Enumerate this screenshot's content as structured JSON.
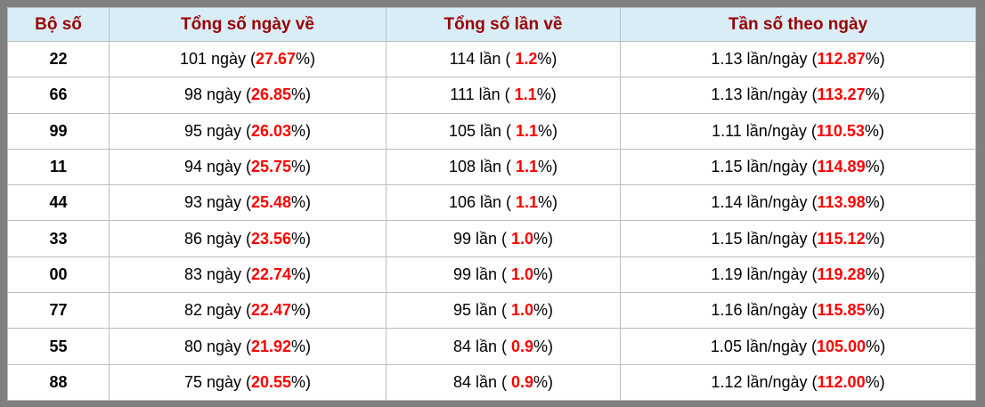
{
  "colors": {
    "frame_border": "#7f7f7f",
    "header_background": "#d9edf7",
    "header_text": "#990000",
    "highlight_value": "#ff0000",
    "grid_line": "#bdbdbd",
    "body_text": "#000000"
  },
  "table": {
    "columns": [
      "Bộ số",
      "Tổng số ngày về",
      "Tổng số lần về",
      "Tần số theo ngày"
    ],
    "rows": [
      {
        "boso": "22",
        "ngay_prefix": "101 ngày (",
        "ngay_value": "27.67",
        "ngay_suffix": "%)",
        "lan_prefix": "114 lần ( ",
        "lan_value": "1.2",
        "lan_suffix": "%)",
        "tanso_prefix": "1.13 lần/ngày (",
        "tanso_value": "112.87",
        "tanso_suffix": "%)"
      },
      {
        "boso": "66",
        "ngay_prefix": "98 ngày (",
        "ngay_value": "26.85",
        "ngay_suffix": "%)",
        "lan_prefix": "111 lần ( ",
        "lan_value": "1.1",
        "lan_suffix": "%)",
        "tanso_prefix": "1.13 lần/ngày (",
        "tanso_value": "113.27",
        "tanso_suffix": "%)"
      },
      {
        "boso": "99",
        "ngay_prefix": "95 ngày (",
        "ngay_value": "26.03",
        "ngay_suffix": "%)",
        "lan_prefix": "105 lần ( ",
        "lan_value": "1.1",
        "lan_suffix": "%)",
        "tanso_prefix": "1.11 lần/ngày (",
        "tanso_value": "110.53",
        "tanso_suffix": "%)"
      },
      {
        "boso": "11",
        "ngay_prefix": "94 ngày (",
        "ngay_value": "25.75",
        "ngay_suffix": "%)",
        "lan_prefix": "108 lần ( ",
        "lan_value": "1.1",
        "lan_suffix": "%)",
        "tanso_prefix": "1.15 lần/ngày (",
        "tanso_value": "114.89",
        "tanso_suffix": "%)"
      },
      {
        "boso": "44",
        "ngay_prefix": "93 ngày (",
        "ngay_value": "25.48",
        "ngay_suffix": "%)",
        "lan_prefix": "106 lần ( ",
        "lan_value": "1.1",
        "lan_suffix": "%)",
        "tanso_prefix": "1.14 lần/ngày (",
        "tanso_value": "113.98",
        "tanso_suffix": "%)"
      },
      {
        "boso": "33",
        "ngay_prefix": "86 ngày (",
        "ngay_value": "23.56",
        "ngay_suffix": "%)",
        "lan_prefix": "99 lần ( ",
        "lan_value": "1.0",
        "lan_suffix": "%)",
        "tanso_prefix": "1.15 lần/ngày (",
        "tanso_value": "115.12",
        "tanso_suffix": "%)"
      },
      {
        "boso": "00",
        "ngay_prefix": "83 ngày (",
        "ngay_value": "22.74",
        "ngay_suffix": "%)",
        "lan_prefix": "99 lần ( ",
        "lan_value": "1.0",
        "lan_suffix": "%)",
        "tanso_prefix": "1.19 lần/ngày (",
        "tanso_value": "119.28",
        "tanso_suffix": "%)"
      },
      {
        "boso": "77",
        "ngay_prefix": "82 ngày (",
        "ngay_value": "22.47",
        "ngay_suffix": "%)",
        "lan_prefix": "95 lần ( ",
        "lan_value": "1.0",
        "lan_suffix": "%)",
        "tanso_prefix": "1.16 lần/ngày (",
        "tanso_value": "115.85",
        "tanso_suffix": "%)"
      },
      {
        "boso": "55",
        "ngay_prefix": "80 ngày (",
        "ngay_value": "21.92",
        "ngay_suffix": "%)",
        "lan_prefix": "84 lần ( ",
        "lan_value": "0.9",
        "lan_suffix": "%)",
        "tanso_prefix": "1.05 lần/ngày (",
        "tanso_value": "105.00",
        "tanso_suffix": "%)"
      },
      {
        "boso": "88",
        "ngay_prefix": "75 ngày (",
        "ngay_value": "20.55",
        "ngay_suffix": "%)",
        "lan_prefix": "84 lần ( ",
        "lan_value": "0.9",
        "lan_suffix": "%)",
        "tanso_prefix": "1.12 lần/ngày (",
        "tanso_value": "112.00",
        "tanso_suffix": "%)"
      }
    ]
  }
}
